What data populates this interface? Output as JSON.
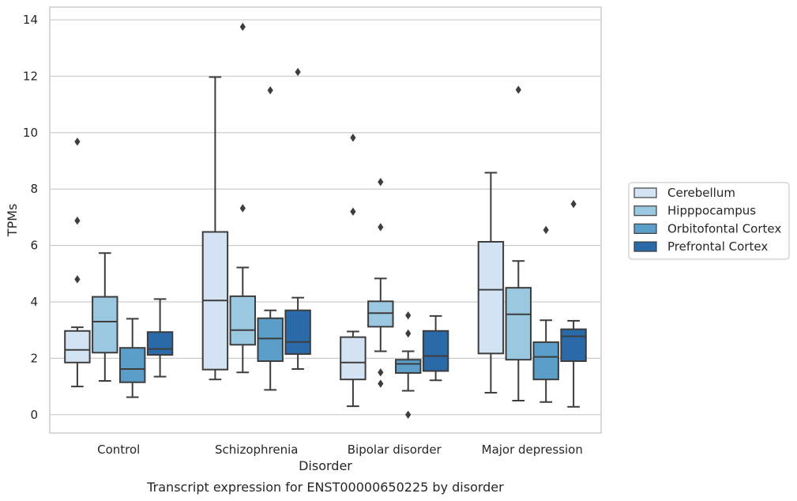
{
  "chart_data": {
    "type": "box",
    "caption": "Transcript expression for ENST00000650225 by disorder",
    "xlabel": "Disorder",
    "ylabel": "TPMs",
    "ylim": [
      -0.65,
      14.45
    ],
    "yticks": [
      0,
      2,
      4,
      6,
      8,
      10,
      12,
      14
    ],
    "grid": "horizontal",
    "legend_position": "right",
    "categories": [
      "Control",
      "Schizophrenia",
      "Bipolar disorder",
      "Major depression"
    ],
    "series": [
      {
        "name": "Cerebellum",
        "color": "#d3e3f3",
        "boxes": [
          {
            "whislo": 1.0,
            "q1": 1.85,
            "med": 2.3,
            "q3": 2.97,
            "whishi": 3.1,
            "fliers": [
              4.8,
              6.88,
              9.68
            ]
          },
          {
            "whislo": 1.25,
            "q1": 1.6,
            "med": 4.05,
            "q3": 6.48,
            "whishi": 11.97,
            "fliers": []
          },
          {
            "whislo": 0.3,
            "q1": 1.25,
            "med": 1.85,
            "q3": 2.75,
            "whishi": 2.95,
            "fliers": [
              7.2,
              9.82
            ]
          },
          {
            "whislo": 0.78,
            "q1": 2.17,
            "med": 4.43,
            "q3": 6.13,
            "whishi": 8.58,
            "fliers": []
          }
        ]
      },
      {
        "name": "Hipppocampus",
        "color": "#9ac8e0",
        "boxes": [
          {
            "whislo": 1.2,
            "q1": 2.2,
            "med": 3.3,
            "q3": 4.18,
            "whishi": 5.73,
            "fliers": []
          },
          {
            "whislo": 1.5,
            "q1": 2.48,
            "med": 3.0,
            "q3": 4.2,
            "whishi": 5.22,
            "fliers": [
              7.32,
              13.75
            ]
          },
          {
            "whislo": 2.25,
            "q1": 3.12,
            "med": 3.6,
            "q3": 4.02,
            "whishi": 4.83,
            "fliers": [
              1.1,
              1.5,
              6.65,
              8.25
            ]
          },
          {
            "whislo": 0.5,
            "q1": 1.95,
            "med": 3.56,
            "q3": 4.5,
            "whishi": 5.45,
            "fliers": [
              11.52
            ]
          }
        ]
      },
      {
        "name": "Orbitofontal Cortex",
        "color": "#5a9ec9",
        "boxes": [
          {
            "whislo": 0.62,
            "q1": 1.15,
            "med": 1.62,
            "q3": 2.37,
            "whishi": 3.4,
            "fliers": []
          },
          {
            "whislo": 0.88,
            "q1": 1.9,
            "med": 2.7,
            "q3": 3.42,
            "whishi": 3.7,
            "fliers": [
              11.5
            ]
          },
          {
            "whislo": 0.85,
            "q1": 1.48,
            "med": 1.8,
            "q3": 1.95,
            "whishi": 2.25,
            "fliers": [
              0.0,
              2.88,
              3.52
            ]
          },
          {
            "whislo": 0.45,
            "q1": 1.25,
            "med": 2.05,
            "q3": 2.57,
            "whishi": 3.35,
            "fliers": [
              6.55
            ]
          }
        ]
      },
      {
        "name": "Prefrontal Cortex",
        "color": "#2b6aa8",
        "boxes": [
          {
            "whislo": 1.35,
            "q1": 2.12,
            "med": 2.33,
            "q3": 2.93,
            "whishi": 4.1,
            "fliers": []
          },
          {
            "whislo": 1.62,
            "q1": 2.15,
            "med": 2.58,
            "q3": 3.7,
            "whishi": 4.15,
            "fliers": [
              12.15
            ]
          },
          {
            "whislo": 1.22,
            "q1": 1.55,
            "med": 2.08,
            "q3": 2.97,
            "whishi": 3.5,
            "fliers": []
          },
          {
            "whislo": 0.28,
            "q1": 1.9,
            "med": 2.78,
            "q3": 3.03,
            "whishi": 3.33,
            "fliers": [
              7.47
            ]
          }
        ]
      }
    ]
  }
}
